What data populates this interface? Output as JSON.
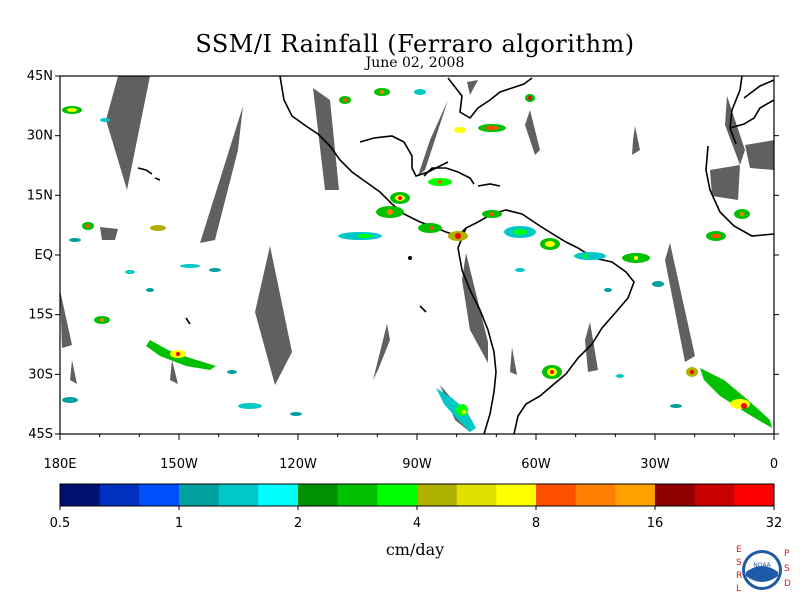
{
  "title": "SSM/I Rainfall (Ferraro algorithm)",
  "date": "June 02, 2008",
  "map": {
    "lat_labels": [
      "45N",
      "30N",
      "15N",
      "EQ",
      "15S",
      "30S",
      "45S"
    ],
    "lon_labels": [
      "180E",
      "150W",
      "120W",
      "90W",
      "60W",
      "30W",
      "0"
    ],
    "no_data_color": "#606060",
    "coastline_color": "#000000"
  },
  "colorbar": {
    "colors": [
      "#001070",
      "#0030c0",
      "#0050ff",
      "#00a0a0",
      "#00c8c8",
      "#00ffff",
      "#009000",
      "#00c000",
      "#00ff00",
      "#b0b000",
      "#e0e000",
      "#ffff00",
      "#ff5000",
      "#ff8000",
      "#ffa000",
      "#900000",
      "#c80000",
      "#ff0000"
    ],
    "tick_labels": [
      "0.5",
      "1",
      "2",
      "4",
      "8",
      "16",
      "32"
    ],
    "units": "cm/day"
  },
  "logo": {
    "left_letters": [
      "E",
      "S",
      "R",
      "L"
    ],
    "right_letters": [
      "P",
      "S",
      "D"
    ],
    "emblem": "NOAA"
  }
}
